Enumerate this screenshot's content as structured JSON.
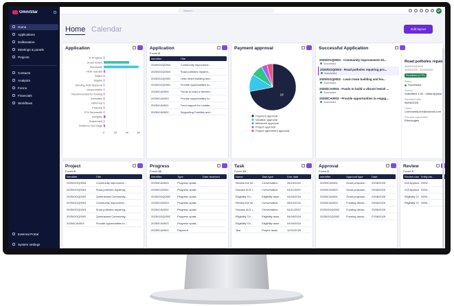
{
  "topbar": {
    "search": "Search...",
    "avatar": "AF"
  },
  "sidebar": {
    "logo": "OmniStar",
    "nav_groups": [
      [
        "Home",
        "Applications",
        "Deliberation",
        "Meetings & panels",
        "Projects"
      ],
      [
        "Contacts",
        "Analytics",
        "Forms",
        "Financials",
        "Workflows"
      ]
    ],
    "footer": [
      "External Portal",
      "System settings"
    ]
  },
  "header": {
    "tabs": [
      "Home",
      "Calendar"
    ],
    "button": "Edit layout"
  },
  "widgets": [
    {
      "kind": "bar",
      "title": "Application",
      "categories": [
        "In Progress",
        "Under review",
        "Successful",
        "HOD rejected",
        "Reject",
        "Eligible",
        "Pending HOD Approval",
        "Unsuccessful",
        "Recommended for funding",
        "Submitted",
        "Returned",
        "Potential",
        "EOI Successful",
        "Ineligible",
        "Suspended",
        "Invited to next stage"
      ],
      "values": [
        1,
        44,
        60,
        2,
        1,
        1,
        1,
        1,
        1,
        1,
        1,
        1,
        1,
        3,
        1,
        2
      ],
      "colors": [
        "#7b61ff",
        "#2ec4a6",
        "#38c8e8",
        "#e0457b",
        "#9b59f6",
        "#6d7cf0",
        "#c86bf2",
        "#f06292",
        "#7e57c2",
        "#5c6bc0",
        "#ba68c8",
        "#ef5350",
        "#8e7cf0",
        "#9c5cf4",
        "#e57373",
        "#7b61ff"
      ],
      "xlim": [
        0,
        64
      ],
      "xticks": [
        0,
        20,
        40,
        60
      ]
    },
    {
      "kind": "table",
      "title": "Application",
      "found_label": "Found",
      "found": 8,
      "columns": [
        "Identifier",
        "Title"
      ],
      "rows": [
        [
          "2025/GGQ0004",
          "Community improveme..."
        ],
        [
          "2025/GGQ0003",
          "Road potholes repairin..."
        ],
        [
          "2025/GGQ0002",
          "Learn team building and..."
        ],
        [
          "2025/GGQ0001",
          "Provide opportunities to..."
        ],
        [
          "2025/ICA0004",
          "Funds to build a vibrant l..."
        ],
        [
          "2025/ICA0003",
          "Provide opportunities to..."
        ],
        [
          "2025/ICA0001",
          "Fund support for Leader..."
        ],
        [
          "2025/ICA0002",
          "Supporting Families and..."
        ]
      ]
    },
    {
      "kind": "pie",
      "title": "Payment approval",
      "categories": [
        "Payment approval",
        "Variation approval",
        "Milestone approval",
        "Project approval",
        "Project agreement approval"
      ],
      "values": [
        18,
        3,
        2,
        1,
        1
      ],
      "colors": [
        "#1c2340",
        "#38c8e8",
        "#2ec48a",
        "#b05cf0",
        "#f0507a"
      ]
    },
    {
      "kind": "list",
      "title": "Successful Application",
      "items": [
        {
          "label": "2025/GGQ0004 - Community improvement 20...",
          "status": "Successful"
        },
        {
          "label": "2025/GGQ0003 - Road potholes repairing pro...",
          "status": "Successful"
        },
        {
          "label": "2025/GGQ0002 - Learn team building and lea...",
          "status": "Successful"
        },
        {
          "label": "2025/ICA0004 - Funds to build a vibrant lewish ...",
          "status": "Successful"
        },
        {
          "label": "2025/ICA0003 - Provide opportunities to engag...",
          "status": "Successful"
        }
      ],
      "detail": {
        "title": "Road potholes repair",
        "id": "2025/GGQ0003",
        "dates": "22/05/2025 - 22/05/2026",
        "tag": "Shortlisted (GTR)",
        "fields": [
          {
            "label": "Status",
            "value": "Successful"
          },
          {
            "label": "Version",
            "value": "Submitted 1.00 - Initial Applica"
          },
          {
            "label": "Submitted date",
            "value": "06/06/2025"
          },
          {
            "label": "Owner",
            "value": "Community.one@council.com"
          },
          {
            "label": "Principal organisation",
            "value": "Ethnologies"
          }
        ]
      }
    },
    {
      "kind": "table",
      "title": "Project",
      "found_label": "Found",
      "found": 8,
      "columns": [
        "Identifier",
        "Title"
      ],
      "rows": [
        [
          "2025/GGQ0004",
          "Community improveme..."
        ],
        [
          "2025/GGQ0003",
          "Road potholes repairing..."
        ],
        [
          "2025/GGQ0002",
          "Queensland Community..."
        ],
        [
          "2025/GGQ0004",
          "Community improveme..."
        ],
        [
          "2025/GGQ0003",
          "Road potholes repairing..."
        ],
        [
          "2025/GGQ0002",
          "Queensland Community..."
        ],
        [
          "2025/ICA0003",
          "Provide opportunities to..."
        ]
      ]
    },
    {
      "kind": "table",
      "title": "Progress",
      "found_label": "Found",
      "found": 16,
      "columns": [
        "Identifier",
        "Type",
        "Date received"
      ],
      "rows": [
        [
          "2025/ICA0003",
          "Progress updat..."
        ],
        [
          "2025/ICA0004",
          "Progress updat..."
        ],
        [
          "2025/GGQ0002",
          "Progress updat..."
        ],
        [
          "2025/ICA0003",
          "Progress updat..."
        ],
        [
          "2025/ICA0004",
          "Progress updat..."
        ],
        [
          "2025/GGQ0002",
          "Progress updat..."
        ],
        [
          "2025/ICA0003",
          "Progress updat..."
        ],
        [
          "2025/ICA0003",
          "Payment"
        ]
      ]
    },
    {
      "kind": "table",
      "title": "Task",
      "found_label": "Found",
      "found": 10,
      "columns": [
        "Name",
        "Task type",
        "Due date"
      ],
      "rows": [
        [
          "Review the mi...",
          "Conversation",
          "28/10/2022"
        ],
        [
          "Discuss ALS r...",
          "Conversation",
          "04/11/2022"
        ],
        [
          "Eligibility Ch...",
          "Eligibility asse...",
          "04/04/2024"
        ],
        [
          "Review the mi...",
          "Conversation",
          "28/10/2022"
        ],
        [
          "Discuss ALS r...",
          "Conversation",
          "04/11/2022"
        ],
        [
          "Eligibility Ch...",
          "Eligibility asse...",
          "04/04/2024"
        ],
        [
          "Eligibility Ch...",
          "Eligibility asse...",
          "04/04/2024"
        ],
        [
          "Test",
          "Project tasks",
          "12/01/2025"
        ]
      ]
    },
    {
      "kind": "table",
      "title": "Approval",
      "found_label": "Found",
      "found": 6,
      "columns": [
        "Identifier",
        "Approval type",
        "Date"
      ],
      "rows": [
        [
          "2025/ICA0004",
          "Grant proposal...",
          "23/06/2025"
        ],
        [
          "2025/ICA0003",
          "Grant proposal...",
          "23/06/2025"
        ],
        [
          "2025/ICA0004",
          "Grant proposal...",
          "23/06/2025"
        ],
        [
          "2025/ICA0003",
          "Funding decisi...",
          "23/06/2025"
        ],
        [
          "2025/GGQ0002",
          "Funding decisi...",
          "23/06/2025"
        ],
        [
          "2025/GGQ0002",
          "Funding decisi...",
          "27/06/2025"
        ]
      ]
    },
    {
      "kind": "table",
      "title": "Review",
      "found_label": "Found",
      "found": 4,
      "columns": [
        "Review name",
        "Entity ide..."
      ],
      "rows": [
        [
          "IOA Applicatio...",
          "2025/..."
        ],
        [
          "IOA Applicatio...",
          "2025/..."
        ],
        [
          "Eligibility Ch...",
          "2025/..."
        ],
        [
          "Eligibility Ch...",
          "2025/..."
        ]
      ]
    }
  ]
}
